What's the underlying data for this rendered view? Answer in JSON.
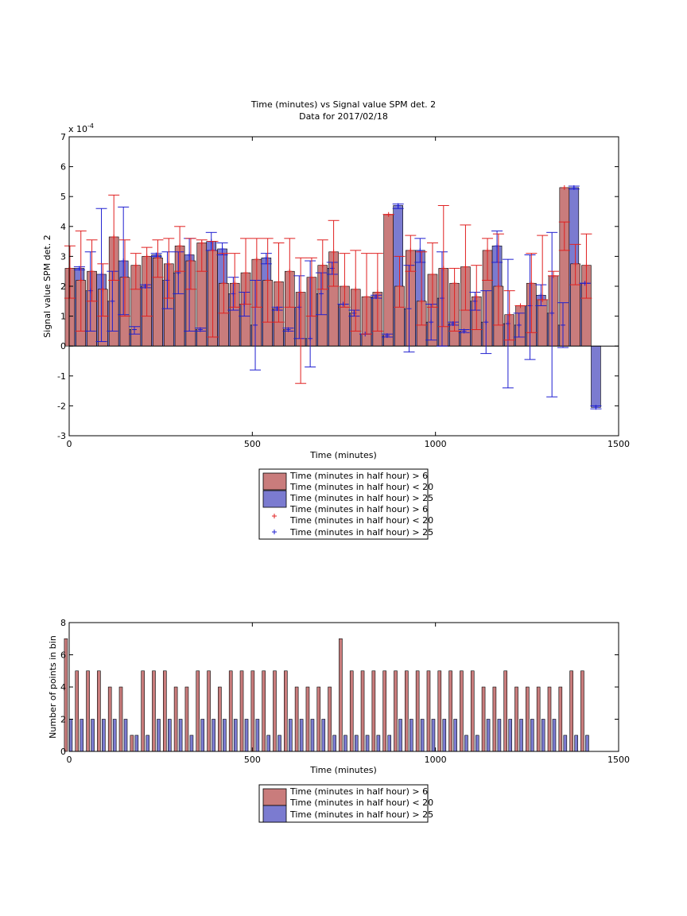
{
  "chart_data": [
    {
      "type": "bar",
      "title": "Time (minutes) vs Signal value SPM det. 2",
      "subtitle": "Data for 2017/02/18",
      "xlabel": "Time (minutes)",
      "ylabel": "Signal value SPM det. 2",
      "y_exponent_label": "x 10",
      "y_exponent_power": "-4",
      "xlim": [
        0,
        1500
      ],
      "ylim": [
        -3,
        7
      ],
      "xticks": [
        "0",
        "500",
        "1000",
        "1500"
      ],
      "yticks": [
        "-3",
        "-2",
        "-1",
        "0",
        "1",
        "2",
        "3",
        "4",
        "5",
        "6",
        "7"
      ],
      "x": [
        15,
        45,
        75,
        105,
        135,
        165,
        195,
        225,
        255,
        285,
        315,
        345,
        375,
        405,
        435,
        465,
        495,
        525,
        555,
        585,
        615,
        645,
        675,
        705,
        735,
        765,
        795,
        825,
        855,
        885,
        915,
        945,
        975,
        1005,
        1035,
        1065,
        1095,
        1125,
        1155,
        1185,
        1215,
        1245,
        1275,
        1305,
        1335,
        1365,
        1395,
        1425
      ],
      "series": [
        {
          "name": "Time (minutes in half hour) > 6 Time (minutes in half hour) < 20",
          "color": "#c97c7c",
          "values": [
            2.6,
            2.2,
            2.5,
            1.9,
            3.65,
            2.3,
            2.7,
            3.0,
            2.95,
            2.75,
            3.35,
            2.85,
            3.45,
            3.2,
            2.1,
            2.1,
            2.45,
            2.9,
            2.2,
            2.15,
            2.5,
            1.8,
            2.3,
            2.7,
            3.15,
            2.0,
            1.9,
            1.65,
            1.8,
            4.4,
            2.0,
            3.2,
            1.5,
            2.4,
            2.6,
            2.1,
            2.65,
            1.65,
            3.2,
            2.0,
            1.05,
            1.35,
            2.1,
            1.55,
            2.35,
            5.3,
            2.75,
            2.7
          ],
          "err_low": [
            1.6,
            0.5,
            1.5,
            1.0,
            2.2,
            1.0,
            1.9,
            1.0,
            2.3,
            1.6,
            2.5,
            1.9,
            2.5,
            0.3,
            1.1,
            1.3,
            1.4,
            1.3,
            0.8,
            0.8,
            1.3,
            -1.25,
            1.0,
            1.9,
            2.0,
            1.3,
            0.5,
            0.4,
            0.5,
            4.4,
            1.3,
            2.5,
            0.7,
            1.3,
            0.65,
            0.5,
            1.2,
            0.55,
            2.2,
            0.7,
            0.2,
            1.35,
            0.45,
            1.55,
            2.35,
            3.2,
            2.05,
            1.6
          ],
          "err_high": [
            3.35,
            3.85,
            3.55,
            2.75,
            5.05,
            3.55,
            3.1,
            3.3,
            3.55,
            3.6,
            4.0,
            3.6,
            3.55,
            3.5,
            3.1,
            3.1,
            3.6,
            3.6,
            3.6,
            3.45,
            3.6,
            2.95,
            2.95,
            3.55,
            4.2,
            3.1,
            3.2,
            3.1,
            3.1,
            4.4,
            3.0,
            3.7,
            3.15,
            3.45,
            4.7,
            2.6,
            4.05,
            2.7,
            3.6,
            3.75,
            1.85,
            1.35,
            3.1,
            3.7,
            2.5,
            4.15,
            3.4,
            3.75
          ]
        },
        {
          "name": "Time (minutes in half hour) > 25",
          "color": "#7b7bd0",
          "values": [
            2.6,
            1.85,
            2.4,
            1.5,
            2.85,
            0.55,
            2.0,
            3.05,
            2.2,
            2.45,
            3.05,
            0.55,
            3.5,
            3.25,
            1.75,
            1.4,
            0.7,
            2.95,
            1.25,
            0.55,
            1.3,
            0.25,
            1.75,
            2.6,
            1.4,
            1.1,
            0.4,
            1.65,
            0.35,
            4.7,
            1.25,
            3.2,
            0.8,
            1.6,
            0.75,
            0.5,
            1.5,
            0.8,
            3.35,
            0.75,
            0.7,
            1.35,
            1.7,
            1.1,
            0.7,
            5.3,
            2.1,
            -2.05
          ],
          "err_low": [
            2.55,
            0.5,
            0.15,
            0.5,
            1.05,
            0.4,
            1.95,
            3.0,
            1.25,
            1.75,
            0.5,
            0.5,
            3.2,
            3.05,
            1.2,
            1.0,
            -0.8,
            2.75,
            1.2,
            0.5,
            0.25,
            -0.7,
            1.05,
            2.4,
            1.4,
            1.0,
            0.4,
            1.6,
            0.3,
            4.6,
            -0.2,
            2.8,
            0.2,
            0.0,
            0.7,
            0.45,
            1.2,
            -0.25,
            2.8,
            -1.4,
            0.3,
            -0.45,
            1.35,
            -1.7,
            -0.05,
            5.25,
            2.1,
            -2.1
          ],
          "err_high": [
            2.65,
            3.15,
            4.6,
            2.5,
            4.65,
            0.65,
            2.05,
            3.1,
            3.15,
            3.15,
            3.6,
            0.6,
            3.8,
            3.45,
            2.3,
            1.8,
            2.2,
            3.1,
            1.3,
            0.6,
            2.35,
            2.85,
            2.45,
            2.8,
            1.4,
            1.2,
            0.4,
            1.7,
            0.4,
            4.75,
            2.7,
            3.6,
            1.4,
            3.15,
            0.8,
            0.55,
            1.8,
            1.85,
            3.85,
            2.9,
            1.1,
            3.05,
            2.05,
            3.8,
            1.45,
            5.35,
            2.1,
            -2.0
          ]
        }
      ],
      "legend": {
        "placement": "below",
        "entries": [
          {
            "label_1": "Time (minutes in half hour) > 6",
            "label_2": "Time (minutes in half hour) < 20",
            "label_3": "Time (minutes in half hour) > 25",
            "kind": "bar"
          },
          {
            "label_1": "Time (minutes in half hour) > 6",
            "label_2": "Time (minutes in half hour) < 20",
            "label_3": "Time (minutes in half hour) > 25",
            "kind": "marker"
          }
        ]
      },
      "colors": {
        "red_bar": "#c97c7c",
        "blue_bar": "#7b7bd0",
        "red_err": "#e02020",
        "blue_err": "#1f1fd0"
      }
    },
    {
      "type": "bar",
      "xlabel": "Time (minutes)",
      "ylabel": "Number of points in bin",
      "xlim": [
        0,
        1500
      ],
      "ylim": [
        0,
        8
      ],
      "xticks": [
        "0",
        "500",
        "1000",
        "1500"
      ],
      "yticks": [
        "0",
        "2",
        "4",
        "6",
        "8"
      ],
      "x": [
        15,
        45,
        75,
        105,
        135,
        165,
        195,
        225,
        255,
        285,
        315,
        345,
        375,
        405,
        435,
        465,
        495,
        525,
        555,
        585,
        615,
        645,
        675,
        705,
        735,
        765,
        795,
        825,
        855,
        885,
        915,
        945,
        975,
        1005,
        1035,
        1065,
        1095,
        1125,
        1155,
        1185,
        1215,
        1245,
        1275,
        1305,
        1335,
        1365,
        1395,
        1425
      ],
      "series": [
        {
          "name": "Time (minutes in half hour) > 6 Time (minutes in half hour) < 20",
          "color": "#c97c7c",
          "values": [
            7,
            5,
            5,
            5,
            4,
            4,
            1,
            5,
            5,
            5,
            4,
            4,
            5,
            5,
            4,
            5,
            5,
            5,
            5,
            5,
            5,
            4,
            4,
            4,
            4,
            7,
            5,
            5,
            5,
            5,
            5,
            5,
            5,
            5,
            5,
            5,
            5,
            5,
            4,
            4,
            5,
            4,
            4,
            4,
            4,
            4,
            5,
            5
          ]
        },
        {
          "name": "Time (minutes in half hour) > 25",
          "color": "#7b7bd0",
          "values": [
            2,
            2,
            2,
            2,
            2,
            2,
            1,
            1,
            2,
            2,
            2,
            1,
            2,
            2,
            2,
            2,
            2,
            2,
            1,
            1,
            2,
            2,
            2,
            2,
            1,
            1,
            1,
            1,
            1,
            1,
            2,
            2,
            2,
            2,
            2,
            2,
            1,
            1,
            2,
            2,
            2,
            2,
            2,
            2,
            2,
            1,
            1,
            1
          ]
        }
      ],
      "legend": {
        "placement": "below",
        "entries": [
          {
            "label_1": "Time (minutes in half hour) > 6",
            "label_2": "Time (minutes in half hour) < 20",
            "label_3": "Time (minutes in half hour) > 25",
            "kind": "bar"
          }
        ]
      }
    }
  ]
}
